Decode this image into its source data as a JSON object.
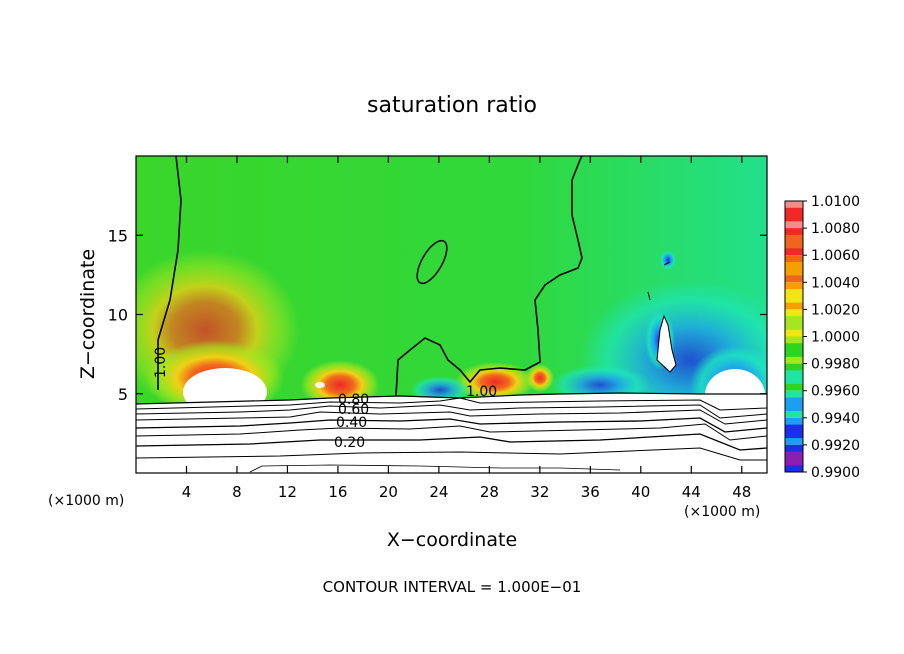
{
  "chart_data": {
    "type": "heatmap",
    "title": "saturation ratio",
    "xlabel": "X−coordinate",
    "ylabel": "Z−coordinate",
    "x_units_left": "(×1000 m)",
    "x_units_right": "(×1000 m)",
    "footer": "CONTOUR INTERVAL = 1.000E−01",
    "xlim": [
      0,
      50
    ],
    "ylim": [
      0,
      20
    ],
    "x_ticks": [
      4,
      8,
      12,
      16,
      20,
      24,
      28,
      32,
      36,
      40,
      44,
      48
    ],
    "y_ticks": [
      5,
      10,
      15
    ],
    "contour_labels": [
      "1.00",
      "1.00",
      "0.80",
      "0.60",
      "0.40",
      "0.20"
    ],
    "colorbar": {
      "labels": [
        "1.0100",
        "1.0080",
        "1.0060",
        "1.0040",
        "1.0020",
        "1.0000",
        "0.9980",
        "0.9960",
        "0.9940",
        "0.9920",
        "0.9900"
      ],
      "colors": [
        "#f58c8c",
        "#f02828",
        "#f0641e",
        "#f5a000",
        "#f0e614",
        "#a6e61e",
        "#2cd61e",
        "#1ee6a0",
        "#1e9ef0",
        "#1e2ee6",
        "#8c1eb4"
      ]
    }
  }
}
